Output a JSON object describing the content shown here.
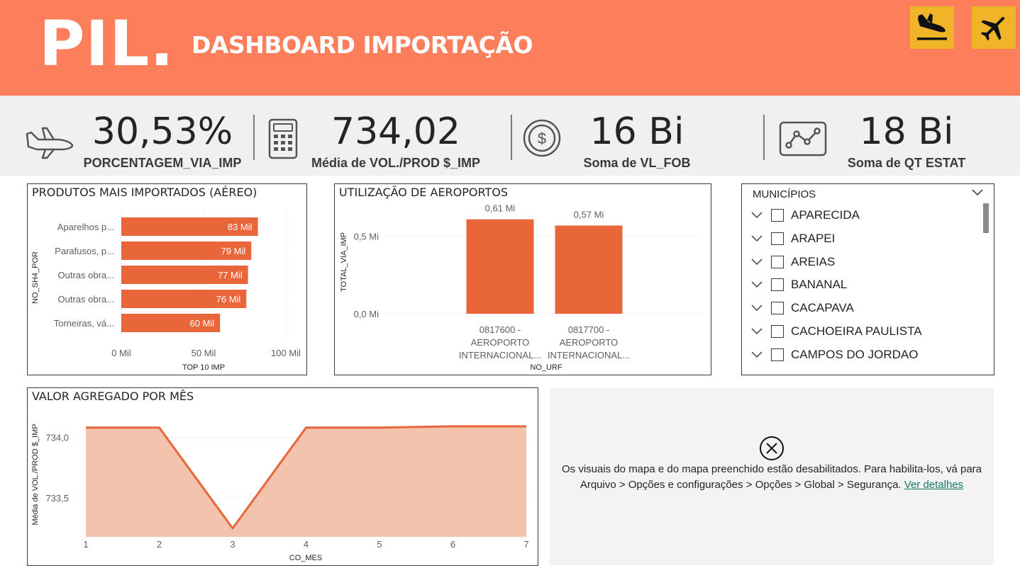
{
  "header": {
    "logo": "PIL.",
    "title": "DASHBOARD IMPORTAÇÃO",
    "buttons": [
      {
        "icon": "plane-landing-icon"
      },
      {
        "icon": "plane-icon"
      }
    ]
  },
  "kpis": [
    {
      "value": "30,53%",
      "label": "PORCENTAGEM_VIA_IMP",
      "icon": "plane-icon"
    },
    {
      "value": "734,02",
      "label": "Média de VOL./PROD $_IMP",
      "icon": "calculator-icon"
    },
    {
      "value": "16 Bi",
      "label": "Soma de VL_FOB",
      "icon": "dollar-coin-icon"
    },
    {
      "value": "18 Bi",
      "label": "Soma de QT ESTAT",
      "icon": "line-chart-icon"
    }
  ],
  "colors": {
    "header_bg": "#fd7e5b",
    "button_bg": "#f0b429",
    "bar": "#e8663a",
    "area_fill": "#f4c3ad",
    "link": "#117865"
  },
  "chart_data": [
    {
      "type": "bar",
      "orientation": "horizontal",
      "title": "PRODUTOS MAIS IMPORTADOS (AÉREO)",
      "xlabel": "TOP 10 IMP",
      "ylabel": "NO_SH4_POR",
      "categories": [
        "Aparelhos p...",
        "Parafusos, p...",
        "Outras obra...",
        "Outras obra...",
        "Torneiras, vá..."
      ],
      "values": [
        83,
        79,
        77,
        76,
        60
      ],
      "data_labels": [
        "83 Mil",
        "79 Mil",
        "77 Mil",
        "76 Mil",
        "60 Mil"
      ],
      "xlim": [
        0,
        100
      ],
      "xticks": [
        0,
        50,
        100
      ],
      "xtick_labels": [
        "0 Mil",
        "50 Mil",
        "100 Mil"
      ],
      "grid": true
    },
    {
      "type": "bar",
      "orientation": "vertical",
      "title": "UTILIZAÇÃO DE AEROPORTOS",
      "xlabel": "NO_URF",
      "ylabel": "TOTAL_VIA_IMP",
      "categories": [
        [
          "0817600 -",
          "AEROPORTO",
          "INTERNACIONAL..."
        ],
        [
          "0817700 -",
          "AEROPORTO",
          "INTERNACIONAL..."
        ]
      ],
      "values": [
        0.61,
        0.57
      ],
      "data_labels": [
        "0,61 Mi",
        "0,57 Mi"
      ],
      "ylim": [
        0,
        0.7
      ],
      "yticks": [
        0,
        0.5
      ],
      "ytick_labels": [
        "0,0 Mi",
        "0,5 Mi"
      ],
      "grid": true
    },
    {
      "type": "area",
      "title": "VALOR AGREGADO POR MÊS",
      "xlabel": "CO_MES",
      "ylabel": "Média de VOL./PROD $_IMP",
      "x": [
        1,
        2,
        3,
        4,
        5,
        6,
        7
      ],
      "values": [
        734.08,
        734.08,
        733.25,
        734.08,
        734.08,
        734.09,
        734.09
      ],
      "ylim": [
        733.18,
        734.16
      ],
      "yticks": [
        733.5,
        734.0
      ],
      "ytick_labels": [
        "733,5",
        "734,0"
      ],
      "grid": true
    }
  ],
  "slicer": {
    "title": "MUNICÍPIOS",
    "items": [
      "APARECIDA",
      "ARAPEI",
      "AREIAS",
      "BANANAL",
      "CACAPAVA",
      "CACHOEIRA PAULISTA",
      "CAMPOS DO JORDAO"
    ]
  },
  "map_notice": {
    "icon": "close-circle-icon",
    "message": "Os visuais do mapa e do mapa preenchido estão desabilitados. Para habilita-los, vá para Arquivo > Opções e configurações > Opções > Global > Segurança.",
    "link": "Ver detalhes"
  }
}
